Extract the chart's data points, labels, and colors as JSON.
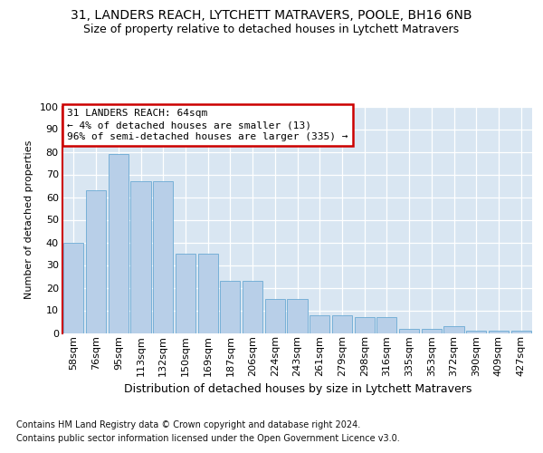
{
  "title_line1": "31, LANDERS REACH, LYTCHETT MATRAVERS, POOLE, BH16 6NB",
  "title_line2": "Size of property relative to detached houses in Lytchett Matravers",
  "xlabel": "Distribution of detached houses by size in Lytchett Matravers",
  "ylabel": "Number of detached properties",
  "footnote_line1": "Contains HM Land Registry data © Crown copyright and database right 2024.",
  "footnote_line2": "Contains public sector information licensed under the Open Government Licence v3.0.",
  "categories": [
    "58sqm",
    "76sqm",
    "95sqm",
    "113sqm",
    "132sqm",
    "150sqm",
    "169sqm",
    "187sqm",
    "206sqm",
    "224sqm",
    "243sqm",
    "261sqm",
    "279sqm",
    "298sqm",
    "316sqm",
    "335sqm",
    "353sqm",
    "372sqm",
    "390sqm",
    "409sqm",
    "427sqm"
  ],
  "values": [
    40,
    63,
    79,
    67,
    67,
    35,
    35,
    23,
    23,
    15,
    15,
    8,
    8,
    7,
    7,
    2,
    2,
    3,
    1,
    1,
    1
  ],
  "bar_color": "#b8cfe8",
  "bar_edge_color": "#6aaad4",
  "annotation_text": "31 LANDERS REACH: 64sqm\n← 4% of detached houses are smaller (13)\n96% of semi-detached houses are larger (335) →",
  "annotation_box_fc": "#ffffff",
  "annotation_box_ec": "#cc0000",
  "marker_line_color": "#cc0000",
  "ylim_max": 100,
  "bg_color": "#d9e6f2",
  "grid_color": "#ffffff",
  "title1_fontsize": 10,
  "title2_fontsize": 9,
  "ylabel_fontsize": 8,
  "xlabel_fontsize": 9,
  "tick_fontsize": 8,
  "annot_fontsize": 8,
  "footnote_fontsize": 7
}
